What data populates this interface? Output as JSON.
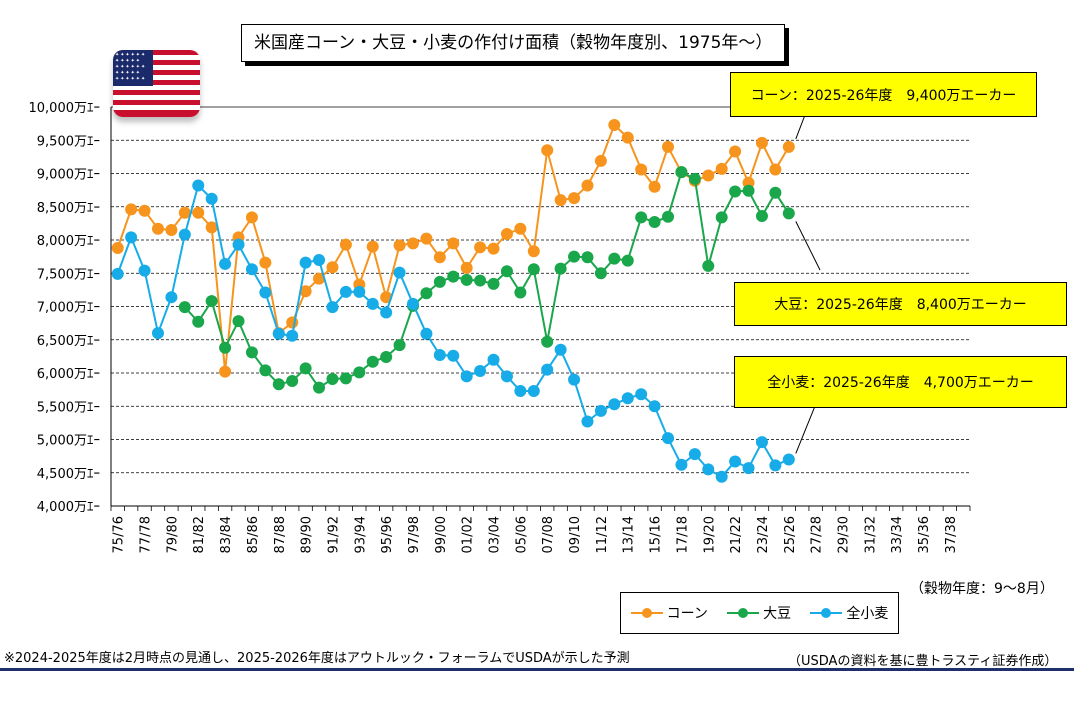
{
  "title": "米国産コーン・大豆・小麦の作付け面積（穀物年度別、1975年～）",
  "callouts": {
    "corn": "コーン：2025-26年度　9,400万エーカー",
    "soy": "大豆：2025-26年度　8,400万エーカー",
    "wheat": "全小麦：2025-26年度　4,700万エーカー"
  },
  "axis_note": "（穀物年度：9～8月）",
  "footnote": "※2024-2025年度は2月時点の見通し、2025-2026年度はアウトルック・フォーラムでUSDAが示した予測",
  "source": "（USDAの資料を基に豊トラスティ証券作成）",
  "flag": {
    "icon": "us-flag-icon",
    "colors": {
      "red": "#c8102e",
      "blue": "#1b2a6b",
      "white": "#ffffff"
    }
  },
  "chart_data": {
    "type": "line",
    "ylim": [
      4000,
      10000
    ],
    "y_tick_step": 500,
    "y_tick_labels": [
      "4,000万ｴｰ",
      "4,500万ｴｰ",
      "5,000万ｴｰ",
      "5,500万ｴｰ",
      "6,000万ｴｰ",
      "6,500万ｴｰ",
      "7,000万ｴｰ",
      "7,500万ｴｰ",
      "8,000万ｴｰ",
      "8,500万ｴｰ",
      "9,000万ｴｰ",
      "9,500万ｴｰ",
      "10,000万ｴｰ"
    ],
    "x_tick_labels": [
      "75/76",
      "77/78",
      "79/80",
      "81/82",
      "83/84",
      "85/86",
      "87/88",
      "89/90",
      "91/92",
      "93/94",
      "95/96",
      "97/98",
      "99/00",
      "01/02",
      "03/04",
      "05/06",
      "07/08",
      "09/10",
      "11/12",
      "13/14",
      "15/16",
      "17/18",
      "19/20",
      "21/22",
      "23/24",
      "25/26",
      "27/28",
      "29/30",
      "31/32",
      "33/34",
      "35/36",
      "37/38"
    ],
    "n_slots": 64,
    "grid": true,
    "legend_placement": "bottom-right",
    "series": [
      {
        "name": "コーン",
        "color": "#f7941d",
        "values": [
          7880,
          8460,
          8440,
          8170,
          8150,
          8410,
          8410,
          8190,
          6020,
          8040,
          8340,
          7660,
          6600,
          6760,
          7230,
          7420,
          7590,
          7930,
          7330,
          7900,
          7140,
          7920,
          7950,
          8020,
          7740,
          7950,
          7580,
          7890,
          7870,
          8090,
          8170,
          7830,
          9350,
          8600,
          8630,
          8820,
          9190,
          9730,
          9540,
          9060,
          8800,
          9400,
          9020,
          8890,
          8970,
          9070,
          9330,
          8860,
          9460,
          9060,
          9400
        ]
      },
      {
        "name": "大豆",
        "color": "#1aa64a",
        "values": [
          null,
          null,
          null,
          null,
          null,
          6990,
          6770,
          7080,
          6380,
          6780,
          6310,
          6040,
          5830,
          5880,
          6070,
          5780,
          5910,
          5920,
          6010,
          6170,
          6240,
          6420,
          7010,
          7200,
          7370,
          7450,
          7400,
          7390,
          7340,
          7530,
          7210,
          7560,
          6470,
          7570,
          7750,
          7740,
          7500,
          7720,
          7690,
          8340,
          8270,
          8350,
          9020,
          8920,
          7610,
          8340,
          8730,
          8740,
          8360,
          8710,
          8400
        ]
      },
      {
        "name": "全小麦",
        "color": "#17ace8",
        "values": [
          7490,
          8040,
          7540,
          6600,
          7140,
          8080,
          8820,
          8620,
          7640,
          7930,
          7560,
          7210,
          6590,
          6560,
          7660,
          7700,
          6990,
          7220,
          7220,
          7040,
          6910,
          7510,
          7040,
          6590,
          6270,
          6260,
          5950,
          6030,
          6200,
          5950,
          5730,
          5730,
          6050,
          6350,
          5900,
          5270,
          5430,
          5530,
          5620,
          5680,
          5500,
          5020,
          4620,
          4780,
          4550,
          4440,
          4670,
          4570,
          4960,
          4610,
          4700
        ]
      }
    ]
  },
  "legend": {
    "corn": "コーン",
    "soy": "大豆",
    "wheat": "全小麦"
  }
}
